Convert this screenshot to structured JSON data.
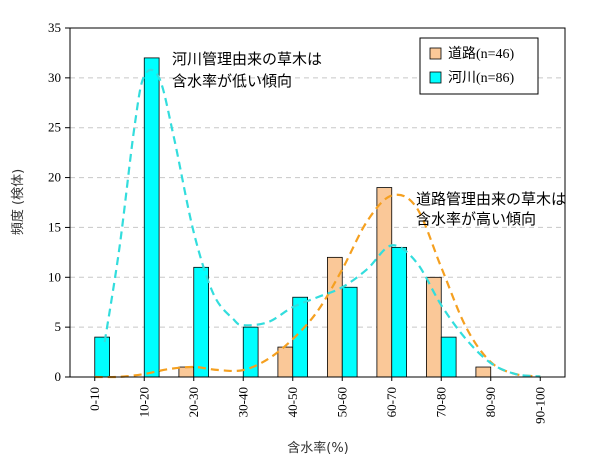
{
  "chart_data": {
    "type": "bar",
    "title": "",
    "xlabel": "含水率(%)",
    "ylabel": "頻度 (検体)",
    "ylim": [
      0,
      35
    ],
    "yticks": [
      0,
      5,
      10,
      15,
      20,
      25,
      30,
      35
    ],
    "grid": "horizontal dashed",
    "legend_position": "top-right",
    "categories": [
      "0-10",
      "10-20",
      "20-30",
      "30-40",
      "40-50",
      "50-60",
      "60-70",
      "70-80",
      "80-90",
      "90-100"
    ],
    "series": [
      {
        "name": "道路(n=46)",
        "color": "#fac898",
        "values": [
          0,
          0,
          1,
          0,
          3,
          12,
          19,
          10,
          1,
          0
        ]
      },
      {
        "name": "河川(n=86)",
        "color": "#00ffff",
        "values": [
          4,
          32,
          11,
          5,
          8,
          9,
          13,
          4,
          0,
          0
        ]
      }
    ],
    "trend_lines": [
      {
        "series": "道路(n=46)",
        "color": "#f5a020",
        "style": "dashed",
        "points": [
          [
            0,
            0
          ],
          [
            0.5,
            0.02
          ],
          [
            1,
            0.3
          ],
          [
            1.5,
            0.8
          ],
          [
            2,
            1.0
          ],
          [
            2.5,
            0.7
          ],
          [
            3,
            0.7
          ],
          [
            3.5,
            1.8
          ],
          [
            4,
            3.8
          ],
          [
            4.5,
            6.6
          ],
          [
            5,
            10.8
          ],
          [
            5.5,
            15.6
          ],
          [
            6,
            18.2
          ],
          [
            6.5,
            17.0
          ],
          [
            7,
            11.0
          ],
          [
            7.5,
            5.0
          ],
          [
            8,
            1.5
          ],
          [
            8.5,
            0.3
          ],
          [
            9,
            0.05
          ]
        ]
      },
      {
        "series": "河川(n=86)",
        "color": "#33dddd",
        "style": "dashed",
        "points": [
          [
            0.2,
            3.5
          ],
          [
            0.5,
            13.0
          ],
          [
            0.8,
            25.0
          ],
          [
            1,
            30.2
          ],
          [
            1.3,
            30.0
          ],
          [
            1.6,
            24.0
          ],
          [
            2,
            14.5
          ],
          [
            2.4,
            8.3
          ],
          [
            2.8,
            5.8
          ],
          [
            3,
            5.2
          ],
          [
            3.5,
            5.5
          ],
          [
            4,
            7.0
          ],
          [
            4.5,
            8.0
          ],
          [
            5,
            9.0
          ],
          [
            5.5,
            10.8
          ],
          [
            6,
            13.2
          ],
          [
            6.5,
            11.5
          ],
          [
            7,
            7.2
          ],
          [
            7.5,
            3.8
          ],
          [
            8,
            1.4
          ],
          [
            8.5,
            0.3
          ],
          [
            9,
            0.05
          ]
        ]
      }
    ],
    "annotations": [
      {
        "lines": [
          "河川管理由来の草木は",
          "含水率が低い傾向"
        ]
      },
      {
        "lines": [
          "道路管理由来の草木は",
          "含水率が高い傾向"
        ]
      }
    ]
  }
}
